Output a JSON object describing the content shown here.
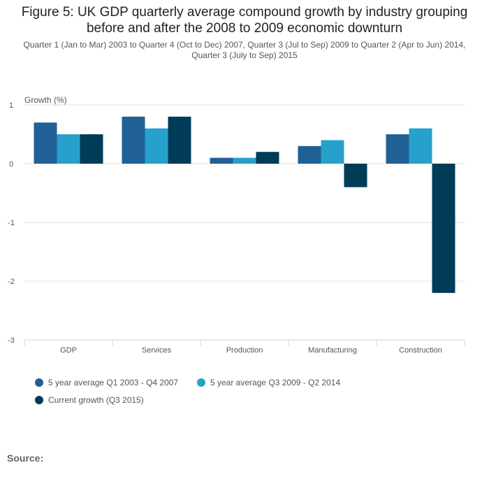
{
  "chart_data": {
    "type": "bar",
    "title": "Figure 5: UK GDP quarterly average compound growth by industry grouping before and after the 2008 to 2009 economic downturn",
    "title_lines": [
      "Figure 5: UK GDP quarterly average compound growth by industry grouping",
      "before and after the 2008 to 2009 economic downturn"
    ],
    "subtitle": "Quarter 1 (Jan to Mar) 2003 to Quarter 4 (Oct to Dec) 2007, Quarter 3 (Jul to Sep) 2009 to Quarter 2 (Apr to Jun) 2014, Quarter 3 (July to Sep) 2015",
    "xlabel": "",
    "ylabel": "Growth (%)",
    "ylim": [
      -3,
      1
    ],
    "yticks": [
      1,
      0,
      -1,
      -2,
      -3
    ],
    "grid": true,
    "legend_position": "bottom-left",
    "categories": [
      "GDP",
      "Services",
      "Production",
      "Manufacturing",
      "Construction"
    ],
    "series": [
      {
        "name": "5 year average Q1 2003 - Q4 2007",
        "color": "#206095",
        "values": [
          0.7,
          0.8,
          0.1,
          0.3,
          0.5
        ]
      },
      {
        "name": "5 year average Q3 2009 - Q2 2014",
        "color": "#27a0cc",
        "values": [
          0.5,
          0.6,
          0.1,
          0.4,
          0.6
        ]
      },
      {
        "name": "Current growth (Q3 2015)",
        "color": "#003c57",
        "values": [
          0.5,
          0.8,
          0.2,
          -0.4,
          -2.2
        ]
      }
    ]
  },
  "source_label": "Source:"
}
